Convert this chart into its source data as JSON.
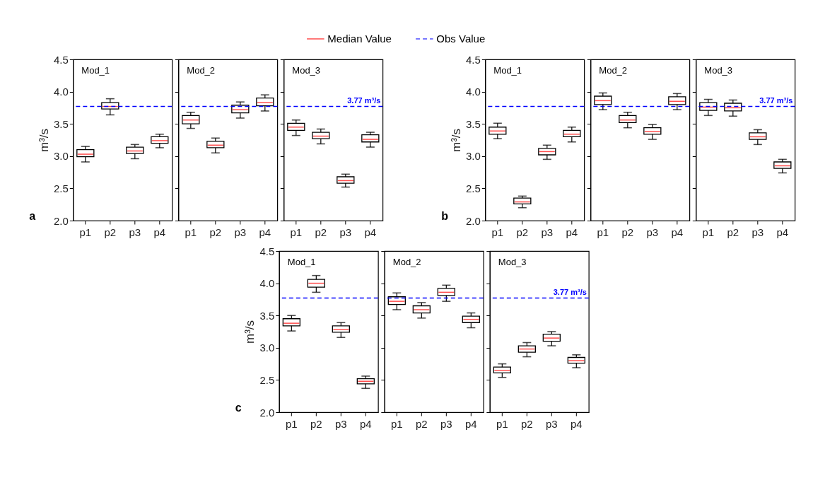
{
  "chart_data": [
    {
      "type": "box",
      "title": "Mod_1",
      "ylabel": "m³/s",
      "annotations": [
        "a"
      ],
      "legend": "top",
      "categories": [
        "p1",
        "p2",
        "p3",
        "p4"
      ],
      "ylim": [
        2.0,
        4.5
      ],
      "yticks": [
        {
          "value": 2.0,
          "label": "2.0"
        },
        2.5,
        {
          "value": 3.0,
          "label": "3.0"
        },
        3.5,
        {
          "value": 4.0,
          "label": "4.0"
        },
        4.5
      ],
      "grid": false,
      "series": [
        {
          "name": "Median Value",
          "color": "#ff0000",
          "boxes": [
            {
              "low": 2.91,
              "q1": 2.99,
              "median": 3.03,
              "q3": 3.1,
              "high": 3.15
            },
            {
              "low": 3.64,
              "q1": 3.73,
              "median": 3.77,
              "q3": 3.83,
              "high": 3.89
            },
            {
              "low": 2.96,
              "q1": 3.04,
              "median": 3.08,
              "q3": 3.14,
              "high": 3.18
            },
            {
              "low": 3.13,
              "q1": 3.2,
              "median": 3.24,
              "q3": 3.3,
              "high": 3.34
            }
          ]
        }
      ],
      "ref_lines": [
        {
          "axis": "y",
          "value": 3.77,
          "label": "Obs Value",
          "color": "#0000ff",
          "line_style": "dashed"
        }
      ]
    },
    {
      "type": "box",
      "title": "Mod_2",
      "tick_labels": "x",
      "categories": [
        "p1",
        "p2",
        "p3",
        "p4"
      ],
      "ylim": [
        2.0,
        4.5
      ],
      "grid": false,
      "series": [
        {
          "color": "#ff0000",
          "boxes": [
            {
              "low": 3.43,
              "q1": 3.5,
              "median": 3.56,
              "q3": 3.63,
              "high": 3.68
            },
            {
              "low": 3.05,
              "q1": 3.13,
              "median": 3.17,
              "q3": 3.23,
              "high": 3.28
            },
            {
              "low": 3.59,
              "q1": 3.67,
              "median": 3.72,
              "q3": 3.79,
              "high": 3.84
            },
            {
              "low": 3.7,
              "q1": 3.78,
              "median": 3.83,
              "q3": 3.9,
              "high": 3.95
            }
          ]
        }
      ],
      "ref_lines": [
        {
          "axis": "y",
          "value": 3.77,
          "color": "#0000ff",
          "line_style": "dashed"
        }
      ]
    },
    {
      "type": "box",
      "title": "Mod_3",
      "tick_labels": "x",
      "categories": [
        "p1",
        "p2",
        "p3",
        "p4"
      ],
      "ylim": [
        2.0,
        4.5
      ],
      "grid": false,
      "series": [
        {
          "color": "#ff0000",
          "boxes": [
            {
              "low": 3.32,
              "q1": 3.4,
              "median": 3.45,
              "q3": 3.51,
              "high": 3.56
            },
            {
              "low": 3.19,
              "q1": 3.27,
              "median": 3.31,
              "q3": 3.37,
              "high": 3.42
            },
            {
              "low": 2.52,
              "q1": 2.58,
              "median": 2.62,
              "q3": 2.68,
              "high": 2.72
            },
            {
              "low": 3.14,
              "q1": 3.22,
              "median": 3.26,
              "q3": 3.33,
              "high": 3.37
            }
          ]
        }
      ],
      "ref_lines": [
        {
          "axis": "y",
          "value": 3.77,
          "label": "3.77 m³/s",
          "color": "#0000ff",
          "line_style": "dashed"
        }
      ]
    },
    {
      "type": "box",
      "title": "Mod_1",
      "ylabel": "m³/s",
      "annotations": [
        "b"
      ],
      "categories": [
        "p1",
        "p2",
        "p3",
        "p4"
      ],
      "ylim": [
        2.0,
        4.5
      ],
      "yticks": [
        {
          "value": 2.0,
          "label": "2.0"
        },
        2.5,
        {
          "value": 3.0,
          "label": "3.0"
        },
        3.5,
        {
          "value": 4.0,
          "label": "4.0"
        },
        4.5
      ],
      "grid": false,
      "series": [
        {
          "color": "#ff0000",
          "boxes": [
            {
              "low": 3.27,
              "q1": 3.34,
              "median": 3.39,
              "q3": 3.45,
              "high": 3.51
            },
            {
              "low": 2.2,
              "q1": 2.26,
              "median": 2.29,
              "q3": 2.35,
              "high": 2.38
            },
            {
              "low": 2.95,
              "q1": 3.02,
              "median": 3.07,
              "q3": 3.12,
              "high": 3.17
            },
            {
              "low": 3.22,
              "q1": 3.3,
              "median": 3.34,
              "q3": 3.4,
              "high": 3.45
            }
          ]
        }
      ],
      "ref_lines": [
        {
          "axis": "y",
          "value": 3.77,
          "color": "#0000ff",
          "line_style": "dashed"
        }
      ]
    },
    {
      "type": "box",
      "title": "Mod_2",
      "tick_labels": "x",
      "categories": [
        "p1",
        "p2",
        "p3",
        "p4"
      ],
      "ylim": [
        2.0,
        4.5
      ],
      "grid": false,
      "series": [
        {
          "color": "#ff0000",
          "boxes": [
            {
              "low": 3.72,
              "q1": 3.8,
              "median": 3.86,
              "q3": 3.93,
              "high": 3.98
            },
            {
              "low": 3.44,
              "q1": 3.52,
              "median": 3.56,
              "q3": 3.63,
              "high": 3.68
            },
            {
              "low": 3.26,
              "q1": 3.34,
              "median": 3.38,
              "q3": 3.44,
              "high": 3.49
            },
            {
              "low": 3.72,
              "q1": 3.8,
              "median": 3.85,
              "q3": 3.92,
              "high": 3.97
            }
          ]
        }
      ],
      "ref_lines": [
        {
          "axis": "y",
          "value": 3.77,
          "color": "#0000ff",
          "line_style": "dashed"
        }
      ]
    },
    {
      "type": "box",
      "title": "Mod_3",
      "tick_labels": "x",
      "categories": [
        "p1",
        "p2",
        "p3",
        "p4"
      ],
      "ylim": [
        2.0,
        4.5
      ],
      "grid": false,
      "series": [
        {
          "color": "#ff0000",
          "boxes": [
            {
              "low": 3.63,
              "q1": 3.71,
              "median": 3.76,
              "q3": 3.83,
              "high": 3.88
            },
            {
              "low": 3.62,
              "q1": 3.7,
              "median": 3.75,
              "q3": 3.82,
              "high": 3.87
            },
            {
              "low": 3.18,
              "q1": 3.26,
              "median": 3.3,
              "q3": 3.36,
              "high": 3.41
            },
            {
              "low": 2.74,
              "q1": 2.81,
              "median": 2.85,
              "q3": 2.91,
              "high": 2.95
            }
          ]
        }
      ],
      "ref_lines": [
        {
          "axis": "y",
          "value": 3.77,
          "label": "3.77 m³/s",
          "color": "#0000ff",
          "line_style": "dashed"
        }
      ]
    },
    {
      "type": "box",
      "title": "Mod_1",
      "ylabel": "m³/s",
      "annotations": [
        "c"
      ],
      "categories": [
        "p1",
        "p2",
        "p3",
        "p4"
      ],
      "ylim": [
        2.0,
        4.5
      ],
      "yticks": [
        {
          "value": 2.0,
          "label": "2.0"
        },
        2.5,
        {
          "value": 3.0,
          "label": "3.0"
        },
        3.5,
        {
          "value": 4.0,
          "label": "4.0"
        },
        4.5
      ],
      "grid": false,
      "series": [
        {
          "color": "#ff0000",
          "boxes": [
            {
              "low": 3.26,
              "q1": 3.34,
              "median": 3.38,
              "q3": 3.45,
              "high": 3.5
            },
            {
              "low": 3.86,
              "q1": 3.94,
              "median": 4.0,
              "q3": 4.06,
              "high": 4.12
            },
            {
              "low": 3.16,
              "q1": 3.24,
              "median": 3.28,
              "q3": 3.34,
              "high": 3.39
            },
            {
              "low": 2.37,
              "q1": 2.44,
              "median": 2.48,
              "q3": 2.52,
              "high": 2.56
            }
          ]
        }
      ],
      "ref_lines": [
        {
          "axis": "y",
          "value": 3.77,
          "color": "#0000ff",
          "line_style": "dashed"
        }
      ]
    },
    {
      "type": "box",
      "title": "Mod_2",
      "tick_labels": "x",
      "categories": [
        "p1",
        "p2",
        "p3",
        "p4"
      ],
      "ylim": [
        2.0,
        4.5
      ],
      "grid": false,
      "series": [
        {
          "color": "#ff0000",
          "boxes": [
            {
              "low": 3.59,
              "q1": 3.67,
              "median": 3.72,
              "q3": 3.79,
              "high": 3.85
            },
            {
              "low": 3.46,
              "q1": 3.54,
              "median": 3.59,
              "q3": 3.65,
              "high": 3.7
            },
            {
              "low": 3.72,
              "q1": 3.81,
              "median": 3.86,
              "q3": 3.92,
              "high": 3.97
            },
            {
              "low": 3.31,
              "q1": 3.39,
              "median": 3.44,
              "q3": 3.49,
              "high": 3.54
            }
          ]
        }
      ],
      "ref_lines": [
        {
          "axis": "y",
          "value": 3.77,
          "color": "#0000ff",
          "line_style": "dashed"
        }
      ]
    },
    {
      "type": "box",
      "title": "Mod_3",
      "tick_labels": "x",
      "categories": [
        "p1",
        "p2",
        "p3",
        "p4"
      ],
      "ylim": [
        2.0,
        4.5
      ],
      "grid": false,
      "series": [
        {
          "color": "#ff0000",
          "boxes": [
            {
              "low": 2.54,
              "q1": 2.61,
              "median": 2.65,
              "q3": 2.7,
              "high": 2.75
            },
            {
              "low": 2.86,
              "q1": 2.93,
              "median": 2.98,
              "q3": 3.03,
              "high": 3.08
            },
            {
              "low": 3.03,
              "q1": 3.1,
              "median": 3.15,
              "q3": 3.21,
              "high": 3.25
            },
            {
              "low": 2.69,
              "q1": 2.76,
              "median": 2.8,
              "q3": 2.85,
              "high": 2.89
            }
          ]
        }
      ],
      "ref_lines": [
        {
          "axis": "y",
          "value": 3.77,
          "label": "3.77 m³/s",
          "color": "#0000ff",
          "line_style": "dashed"
        }
      ]
    }
  ]
}
